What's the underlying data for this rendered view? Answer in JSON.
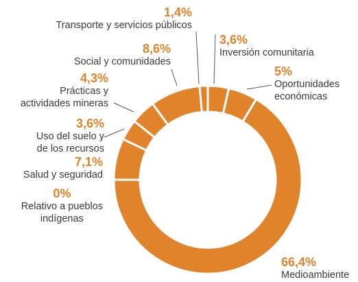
{
  "chart_data": {
    "type": "donut",
    "categories": [
      "Inversión comunitaria",
      "Oportunidades\neconómicas",
      "Medioambiente",
      "Relativo a pueblos\nindígenas",
      "Salud y seguridad",
      "Uso del suelo y\nde los recursos",
      "Prácticas y\nactividades mineras",
      "Social y comunidades",
      "Transporte y servicios públicos"
    ],
    "values": [
      3.6,
      5,
      66.4,
      0,
      7.1,
      3.6,
      4.3,
      8.6,
      1.4
    ],
    "value_labels": [
      "3,6%",
      "5%",
      "66,4%",
      "0%",
      "7,1%",
      "3,6%",
      "4,3%",
      "8,6%",
      "1,4%"
    ],
    "color": "#e0832b"
  }
}
